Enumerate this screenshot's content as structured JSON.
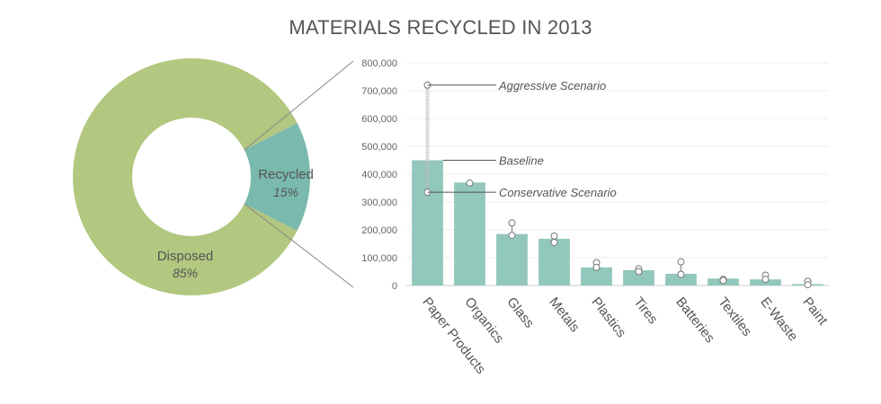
{
  "chart_data": [
    {
      "type": "pie",
      "title": "MATERIALS RECYCLED IN 2013",
      "slices": [
        {
          "label": "Disposed",
          "value": 85,
          "display": "85%",
          "color": "#b2c77f"
        },
        {
          "label": "Recycled",
          "value": 15,
          "display": "15%",
          "color": "#7ab9ad"
        }
      ]
    },
    {
      "type": "bar",
      "categories": [
        "Paper Products",
        "Organics",
        "Glass",
        "Metals",
        "Plastics",
        "Tires",
        "Batteries",
        "Textiles",
        "E-Waste",
        "Paint"
      ],
      "values": [
        450000,
        370000,
        185000,
        168000,
        65000,
        55000,
        42000,
        25000,
        22000,
        5000
      ],
      "scenario_low": [
        335000,
        368000,
        180000,
        155000,
        65000,
        50000,
        40000,
        18000,
        22000,
        3000
      ],
      "scenario_high": [
        720000,
        368000,
        225000,
        178000,
        82000,
        60000,
        85000,
        22000,
        37000,
        15000
      ],
      "yticks": [
        "800,000",
        "700,000",
        "600,000",
        "500,000",
        "400,000",
        "300,000",
        "200,000",
        "100,000",
        "0"
      ],
      "ylim": [
        0,
        800000
      ],
      "bar_color": "#92c7bc",
      "annotations": {
        "aggressive": {
          "label": "Aggressive Scenario",
          "value": 720000
        },
        "baseline": {
          "label": "Baseline",
          "value": 450000
        },
        "conservative": {
          "label": "Conservative Scenario",
          "value": 335000
        }
      },
      "xlabel": "",
      "ylabel": ""
    }
  ]
}
